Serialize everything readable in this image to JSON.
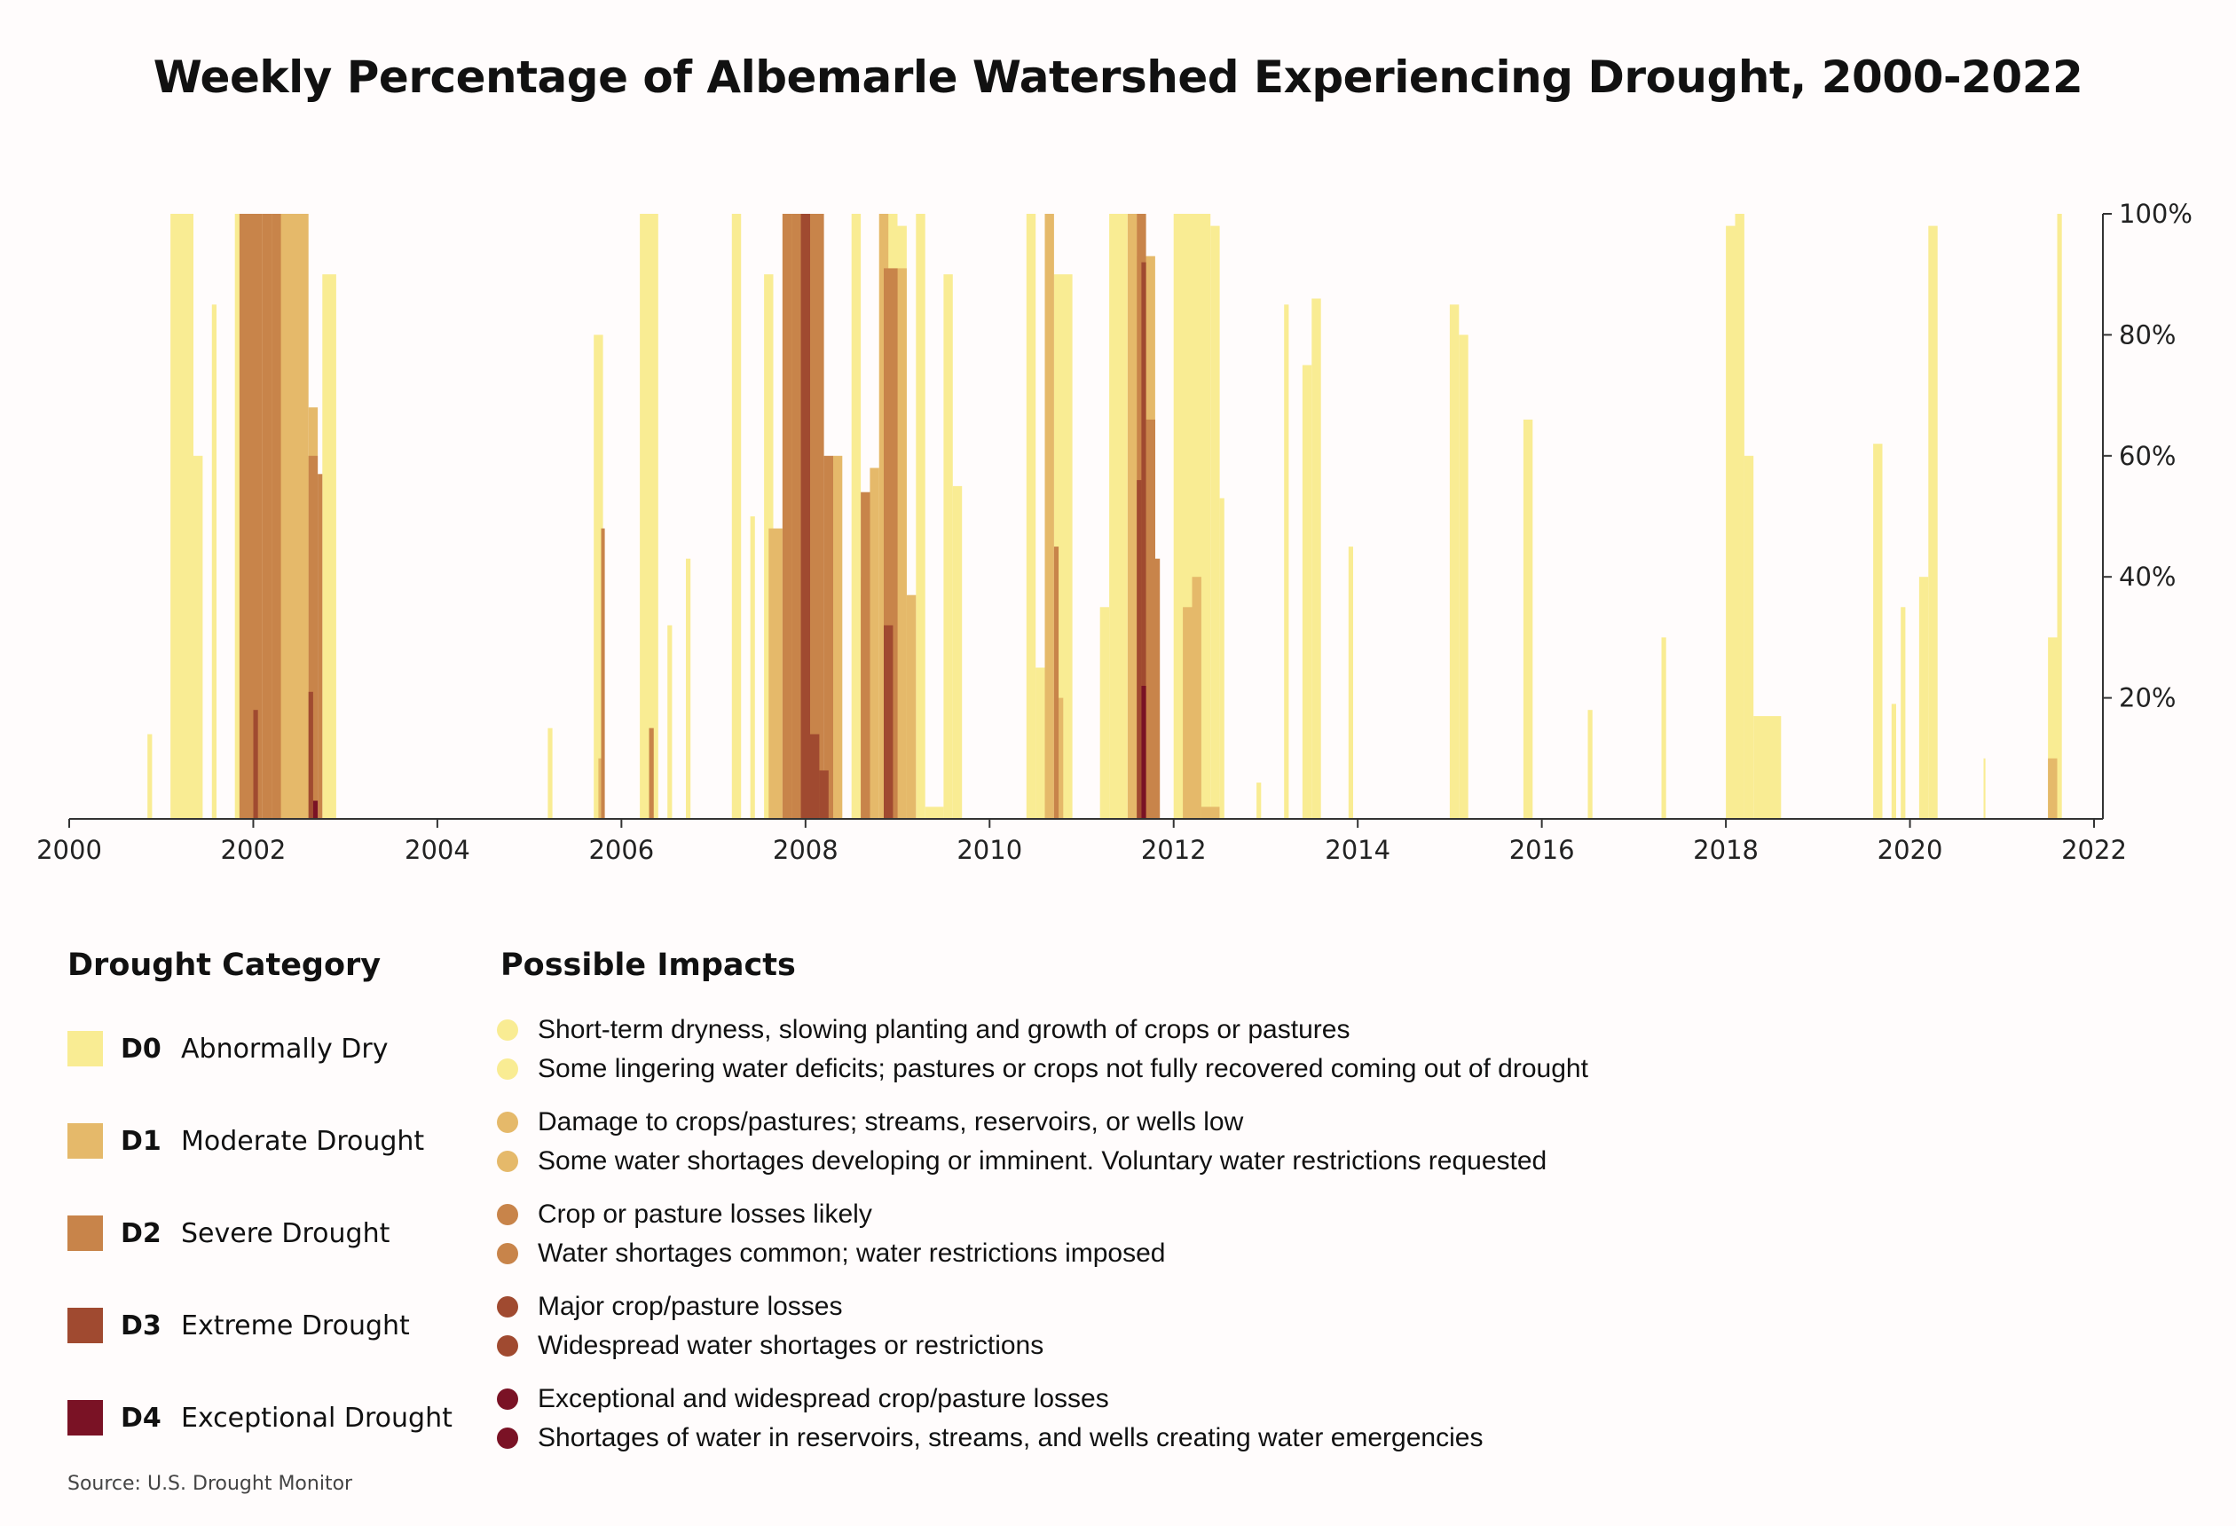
{
  "chart_data": {
    "type": "area",
    "title": "Weekly Percentage of Albemarle Watershed Experiencing Drought, 2000-2022",
    "xlabel": "",
    "ylabel": "",
    "xlim": [
      2000,
      2022
    ],
    "ylim": [
      0,
      100
    ],
    "x_ticks": [
      "2000",
      "2002",
      "2004",
      "2006",
      "2008",
      "2010",
      "2012",
      "2014",
      "2016",
      "2018",
      "2020",
      "2022"
    ],
    "y_ticks": [
      "20%",
      "40%",
      "60%",
      "80%",
      "100%"
    ],
    "y_tick_values": [
      20,
      40,
      60,
      80,
      100
    ],
    "colors": {
      "D0": "#f9ec93",
      "D1": "#e5b96a",
      "D2": "#c8844a",
      "D3": "#a04a30",
      "D4": "#7a1225"
    },
    "series": [
      {
        "name": "D0",
        "spikes": [
          [
            2000.85,
            2000.9,
            14
          ],
          [
            2001.1,
            2001.35,
            100
          ],
          [
            2001.35,
            2001.45,
            60
          ],
          [
            2001.55,
            2001.6,
            85
          ],
          [
            2001.8,
            2001.9,
            100
          ],
          [
            2002.1,
            2002.2,
            100
          ],
          [
            2002.75,
            2002.9,
            90
          ],
          [
            2005.2,
            2005.25,
            15
          ],
          [
            2005.7,
            2005.8,
            80
          ],
          [
            2006.2,
            2006.4,
            100
          ],
          [
            2006.5,
            2006.55,
            32
          ],
          [
            2006.7,
            2006.75,
            43
          ],
          [
            2007.2,
            2007.3,
            100
          ],
          [
            2007.4,
            2007.45,
            50
          ],
          [
            2007.55,
            2007.65,
            90
          ],
          [
            2008.5,
            2008.6,
            100
          ],
          [
            2008.6,
            2008.7,
            40
          ],
          [
            2008.8,
            2009.0,
            100
          ],
          [
            2009.0,
            2009.1,
            98
          ],
          [
            2009.2,
            2009.3,
            100
          ],
          [
            2009.3,
            2009.5,
            2
          ],
          [
            2009.5,
            2009.6,
            90
          ],
          [
            2009.6,
            2009.7,
            55
          ],
          [
            2010.4,
            2010.5,
            100
          ],
          [
            2010.5,
            2010.6,
            25
          ],
          [
            2010.7,
            2010.9,
            90
          ],
          [
            2011.2,
            2011.3,
            35
          ],
          [
            2011.3,
            2011.5,
            100
          ],
          [
            2011.5,
            2011.6,
            100
          ],
          [
            2012.0,
            2012.4,
            100
          ],
          [
            2012.4,
            2012.5,
            98
          ],
          [
            2012.5,
            2012.55,
            53
          ],
          [
            2012.9,
            2012.95,
            6
          ],
          [
            2013.2,
            2013.25,
            85
          ],
          [
            2013.4,
            2013.5,
            75
          ],
          [
            2013.5,
            2013.6,
            86
          ],
          [
            2013.9,
            2013.95,
            45
          ],
          [
            2015.0,
            2015.1,
            85
          ],
          [
            2015.1,
            2015.2,
            80
          ],
          [
            2015.8,
            2015.9,
            66
          ],
          [
            2016.5,
            2016.55,
            18
          ],
          [
            2017.3,
            2017.35,
            30
          ],
          [
            2018.0,
            2018.1,
            98
          ],
          [
            2018.1,
            2018.2,
            100
          ],
          [
            2018.2,
            2018.3,
            60
          ],
          [
            2018.3,
            2018.6,
            17
          ],
          [
            2019.6,
            2019.7,
            62
          ],
          [
            2019.8,
            2019.85,
            19
          ],
          [
            2019.9,
            2019.95,
            35
          ],
          [
            2020.1,
            2020.2,
            40
          ],
          [
            2020.2,
            2020.3,
            98
          ],
          [
            2020.8,
            2020.82,
            10
          ],
          [
            2021.5,
            2021.6,
            30
          ],
          [
            2021.6,
            2021.65,
            100
          ]
        ]
      },
      {
        "name": "D1",
        "spikes": [
          [
            2001.85,
            2002.0,
            100
          ],
          [
            2002.2,
            2002.6,
            100
          ],
          [
            2002.6,
            2002.7,
            68
          ],
          [
            2005.75,
            2005.8,
            10
          ],
          [
            2006.3,
            2006.35,
            15
          ],
          [
            2007.6,
            2007.75,
            48
          ],
          [
            2007.75,
            2007.9,
            100
          ],
          [
            2008.3,
            2008.4,
            60
          ],
          [
            2008.6,
            2008.7,
            37
          ],
          [
            2008.7,
            2008.8,
            58
          ],
          [
            2008.8,
            2008.9,
            100
          ],
          [
            2009.0,
            2009.1,
            91
          ],
          [
            2009.1,
            2009.2,
            37
          ],
          [
            2010.6,
            2010.7,
            100
          ],
          [
            2010.7,
            2010.8,
            20
          ],
          [
            2011.5,
            2011.6,
            100
          ],
          [
            2011.6,
            2011.8,
            93
          ],
          [
            2012.1,
            2012.2,
            35
          ],
          [
            2012.2,
            2012.3,
            40
          ],
          [
            2012.3,
            2012.5,
            2
          ],
          [
            2021.5,
            2021.6,
            10
          ]
        ]
      },
      {
        "name": "D2",
        "spikes": [
          [
            2001.85,
            2002.1,
            100
          ],
          [
            2002.1,
            2002.2,
            100
          ],
          [
            2002.2,
            2002.3,
            100
          ],
          [
            2002.6,
            2002.7,
            60
          ],
          [
            2002.7,
            2002.75,
            57
          ],
          [
            2005.78,
            2005.82,
            48
          ],
          [
            2006.3,
            2006.35,
            15
          ],
          [
            2007.75,
            2007.85,
            100
          ],
          [
            2007.85,
            2008.2,
            100
          ],
          [
            2008.2,
            2008.3,
            60
          ],
          [
            2008.6,
            2008.7,
            54
          ],
          [
            2008.85,
            2009.0,
            91
          ],
          [
            2010.7,
            2010.75,
            45
          ],
          [
            2011.6,
            2011.7,
            100
          ],
          [
            2011.7,
            2011.8,
            66
          ],
          [
            2011.8,
            2011.85,
            43
          ]
        ]
      },
      {
        "name": "D3",
        "spikes": [
          [
            2002.0,
            2002.05,
            18
          ],
          [
            2002.6,
            2002.65,
            21
          ],
          [
            2007.95,
            2008.05,
            100
          ],
          [
            2008.05,
            2008.15,
            14
          ],
          [
            2008.15,
            2008.25,
            8
          ],
          [
            2008.85,
            2008.95,
            32
          ],
          [
            2011.6,
            2011.65,
            56
          ],
          [
            2011.65,
            2011.7,
            92
          ]
        ]
      },
      {
        "name": "D4",
        "spikes": [
          [
            2002.65,
            2002.7,
            3
          ],
          [
            2011.65,
            2011.7,
            22
          ]
        ]
      }
    ]
  },
  "legend": {
    "category_heading": "Drought Category",
    "impacts_heading": "Possible Impacts",
    "categories": [
      {
        "code": "D0",
        "label": "Abnormally Dry",
        "color": "#f9ec93"
      },
      {
        "code": "D1",
        "label": "Moderate Drought",
        "color": "#e5b96a"
      },
      {
        "code": "D2",
        "label": "Severe Drought",
        "color": "#c8844a"
      },
      {
        "code": "D3",
        "label": "Extreme Drought",
        "color": "#a04a30"
      },
      {
        "code": "D4",
        "label": "Exceptional Drought",
        "color": "#7a1225"
      }
    ],
    "impacts": [
      {
        "text": "Short-term dryness, slowing planting and growth of crops or pastures",
        "color": "#f9ec93"
      },
      {
        "text": "Some lingering water deficits; pastures or crops not fully recovered coming out of drought",
        "color": "#f9ec93"
      },
      {
        "text": "Damage to crops/pastures; streams, reservoirs, or wells low",
        "color": "#e5b96a"
      },
      {
        "text": "Some water shortages developing or imminent. Voluntary water restrictions requested",
        "color": "#e5b96a"
      },
      {
        "text": "Crop or pasture losses likely",
        "color": "#c8844a"
      },
      {
        "text": "Water shortages common; water restrictions imposed",
        "color": "#c8844a"
      },
      {
        "text": "Major crop/pasture losses",
        "color": "#a04a30"
      },
      {
        "text": "Widespread water shortages or restrictions",
        "color": "#a04a30"
      },
      {
        "text": "Exceptional and widespread crop/pasture losses",
        "color": "#7a1225"
      },
      {
        "text": "Shortages of water in reservoirs, streams, and wells creating water emergencies",
        "color": "#7a1225"
      }
    ]
  },
  "source": "Source: U.S. Drought Monitor"
}
